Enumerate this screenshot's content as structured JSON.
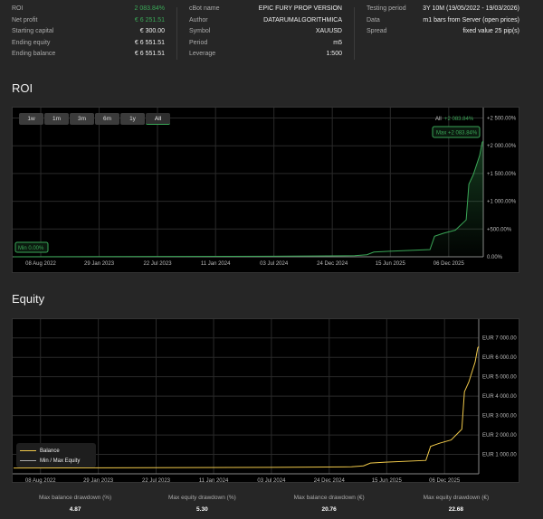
{
  "summary": {
    "col1": [
      {
        "label": "ROI",
        "value": "2 083.84%",
        "green": true
      },
      {
        "label": "Net profit",
        "value": "€ 6 251.51",
        "green": true
      },
      {
        "label": "Starting capital",
        "value": "€ 300.00"
      },
      {
        "label": "Ending equity",
        "value": "€ 6 551.51"
      },
      {
        "label": "Ending balance",
        "value": "€ 6 551.51"
      }
    ],
    "col2": [
      {
        "label": "cBot name",
        "value": "EPIC FURY PROP VERSION"
      },
      {
        "label": "Author",
        "value": "DATARUMALGORITHMICA"
      },
      {
        "label": "Symbol",
        "value": "XAUUSD"
      },
      {
        "label": "Period",
        "value": "m5"
      },
      {
        "label": "Leverage",
        "value": "1:500"
      }
    ],
    "col3": [
      {
        "label": "Testing period",
        "value": "3Y 10M (19/05/2022 - 19/03/2026)"
      },
      {
        "label": "Data",
        "value": "m1 bars from Server (open prices)"
      },
      {
        "label": "Spread",
        "value": "fixed value 25 pip(s)"
      }
    ]
  },
  "colors": {
    "roi": "#3aa757",
    "balance": "#f0c94a",
    "equity_line": "#aaaaaa",
    "bg": "#262626"
  },
  "roi_section": {
    "title": "ROI",
    "ranges": [
      "1w",
      "1m",
      "3m",
      "6m",
      "1y",
      "All"
    ],
    "selected_range": "All",
    "all_label": "All",
    "all_value": "+2 083.84%",
    "max_label": "Max +2 083.84%",
    "min_label": "Min 0.00%"
  },
  "equity_section": {
    "title": "Equity",
    "legend": [
      "Balance",
      "Min / Max Equity"
    ]
  },
  "chart_data": [
    {
      "type": "area",
      "name": "ROI",
      "x_range": [
        "2022-05-19",
        "2026-03-19"
      ],
      "xticks": [
        "08 Aug 2022",
        "29 Jan 2023",
        "22 Jul 2023",
        "11 Jan 2024",
        "03 Jul 2024",
        "24 Dec 2024",
        "15 Jun 2025",
        "06 Dec 2025"
      ],
      "yticks": [
        "0.00%",
        "+500.00%",
        "+1 000.00%",
        "+1 500.00%",
        "+2 000.00%",
        "+2 500.00%"
      ],
      "ylim": [
        0,
        2500
      ],
      "grid": true,
      "x": [
        "2022-05-19",
        "2024-07-01",
        "2025-03-01",
        "2025-04-06",
        "2025-04-27",
        "2025-06-12",
        "2025-10-11",
        "2025-10-25",
        "2025-11-21",
        "2025-12-26",
        "2026-01-27",
        "2026-02-04",
        "2026-02-17",
        "2026-03-08",
        "2026-03-16",
        "2026-03-19"
      ],
      "y": [
        0,
        10,
        20,
        37,
        85,
        100,
        130,
        370,
        425,
        480,
        665,
        1310,
        1475,
        1820,
        2065,
        2083.84
      ]
    },
    {
      "type": "line",
      "name": "Equity",
      "x_range": [
        "2022-05-19",
        "2026-03-19"
      ],
      "xticks": [
        "08 Aug 2022",
        "29 Jan 2023",
        "22 Jul 2023",
        "11 Jan 2024",
        "03 Jul 2024",
        "24 Dec 2024",
        "15 Jun 2025",
        "06 Dec 2025"
      ],
      "yticks": [
        "EUR 1 000.00",
        "EUR 2 000.00",
        "EUR 3 000.00",
        "EUR 4 000.00",
        "EUR 5 000.00",
        "EUR 6 000.00",
        "EUR 7 000.00"
      ],
      "ylim": [
        0,
        7500
      ],
      "grid": true,
      "legend": "bottom-left",
      "series": [
        {
          "name": "Balance",
          "x": [
            "2022-05-19",
            "2024-07-01",
            "2025-03-01",
            "2025-04-06",
            "2025-04-27",
            "2025-06-12",
            "2025-10-11",
            "2025-10-25",
            "2025-11-21",
            "2025-12-26",
            "2026-01-27",
            "2026-02-04",
            "2026-02-17",
            "2026-03-08",
            "2026-03-16",
            "2026-03-19"
          ],
          "y": [
            300,
            330,
            360,
            411,
            555,
            600,
            690,
            1410,
            1575,
            1740,
            2295,
            4230,
            4725,
            5760,
            6495,
            6551.51
          ]
        }
      ]
    }
  ],
  "stats": [
    {
      "label": "Max balance drawdown (%)",
      "value": "4.87"
    },
    {
      "label": "Max equity drawdown (%)",
      "value": "5.30"
    },
    {
      "label": "Max balance drawdown (€)",
      "value": "20.76"
    },
    {
      "label": "Max equity drawdown (€)",
      "value": "22.68"
    }
  ]
}
